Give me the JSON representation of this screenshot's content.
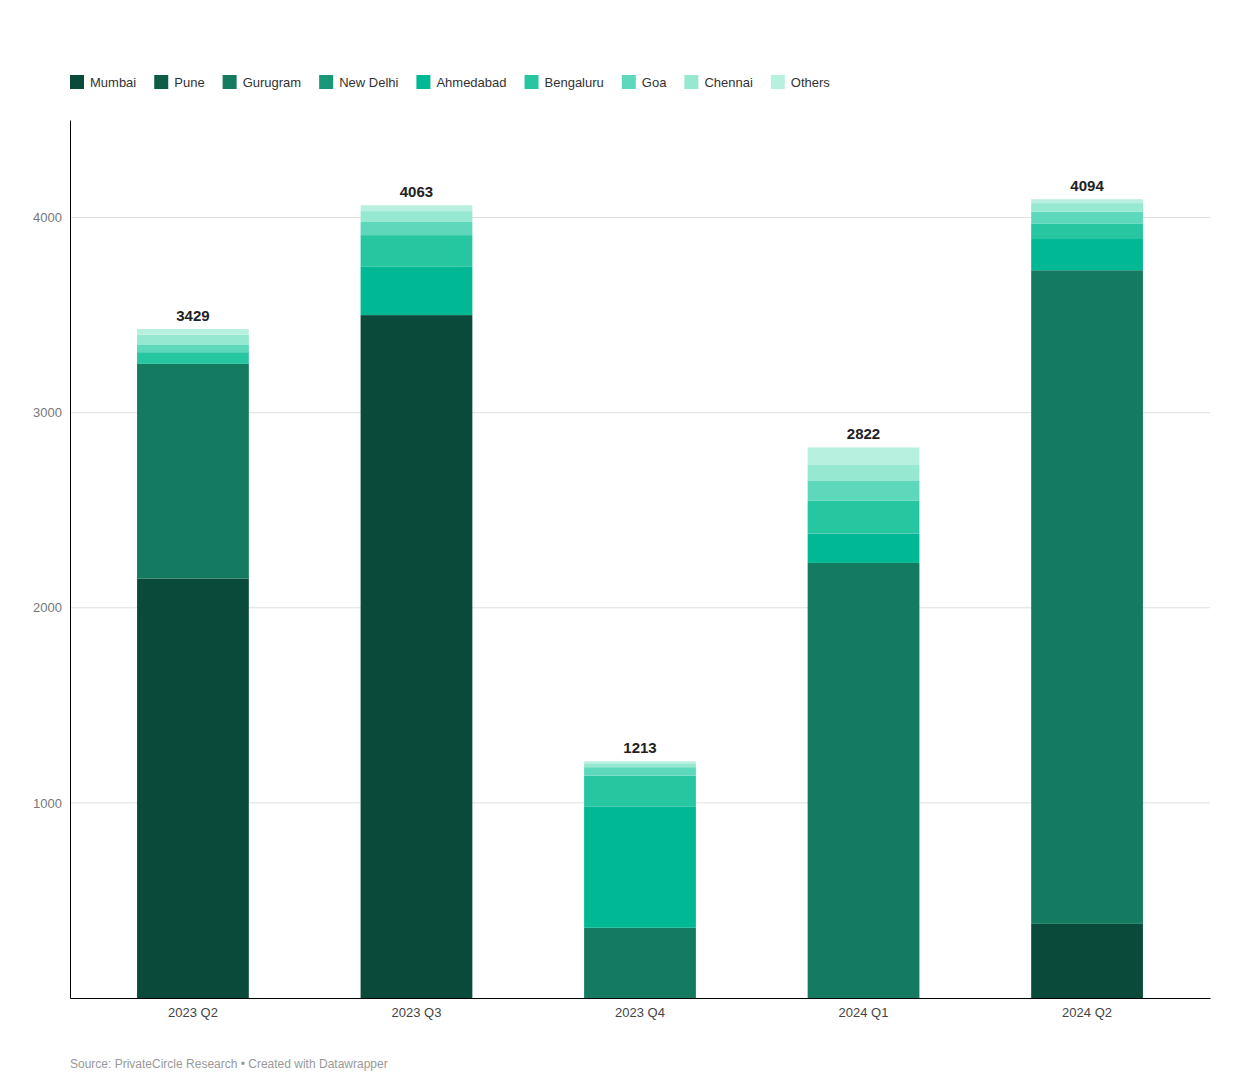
{
  "chart_data": {
    "type": "bar",
    "stacked": true,
    "grid": true,
    "legend": "top-left",
    "categories": [
      "2023 Q2",
      "2023 Q3",
      "2023 Q4",
      "2024 Q1",
      "2024 Q2"
    ],
    "series": [
      {
        "name": "Mumbai",
        "color": "#0a4a3a",
        "values": [
          2150,
          3500,
          0,
          0,
          380
        ]
      },
      {
        "name": "Pune",
        "color": "#0d5c48",
        "values": [
          0,
          0,
          0,
          0,
          0
        ]
      },
      {
        "name": "Gurugram",
        "color": "#147a60",
        "values": [
          1100,
          0,
          360,
          2230,
          3350
        ]
      },
      {
        "name": "New Delhi",
        "color": "#1a9678",
        "values": [
          0,
          0,
          0,
          0,
          0
        ]
      },
      {
        "name": "Ahmedabad",
        "color": "#00b894",
        "values": [
          0,
          250,
          620,
          150,
          160
        ]
      },
      {
        "name": "Bengaluru",
        "color": "#26c6a0",
        "values": [
          60,
          160,
          160,
          170,
          80
        ]
      },
      {
        "name": "Goa",
        "color": "#5ed8ba",
        "values": [
          40,
          70,
          43,
          100,
          60
        ]
      },
      {
        "name": "Chennai",
        "color": "#96e8d0",
        "values": [
          50,
          53,
          20,
          82,
          44
        ]
      },
      {
        "name": "Others",
        "color": "#b8f0e0",
        "values": [
          29,
          30,
          10,
          90,
          20
        ]
      }
    ],
    "totals": [
      3429,
      4063,
      1213,
      2822,
      4094
    ],
    "ylim": [
      0,
      4500
    ],
    "yticks": [
      1000,
      2000,
      3000,
      4000
    ],
    "annotations": [
      "Source: PrivateCircle Research • Created with Datawrapper"
    ]
  }
}
